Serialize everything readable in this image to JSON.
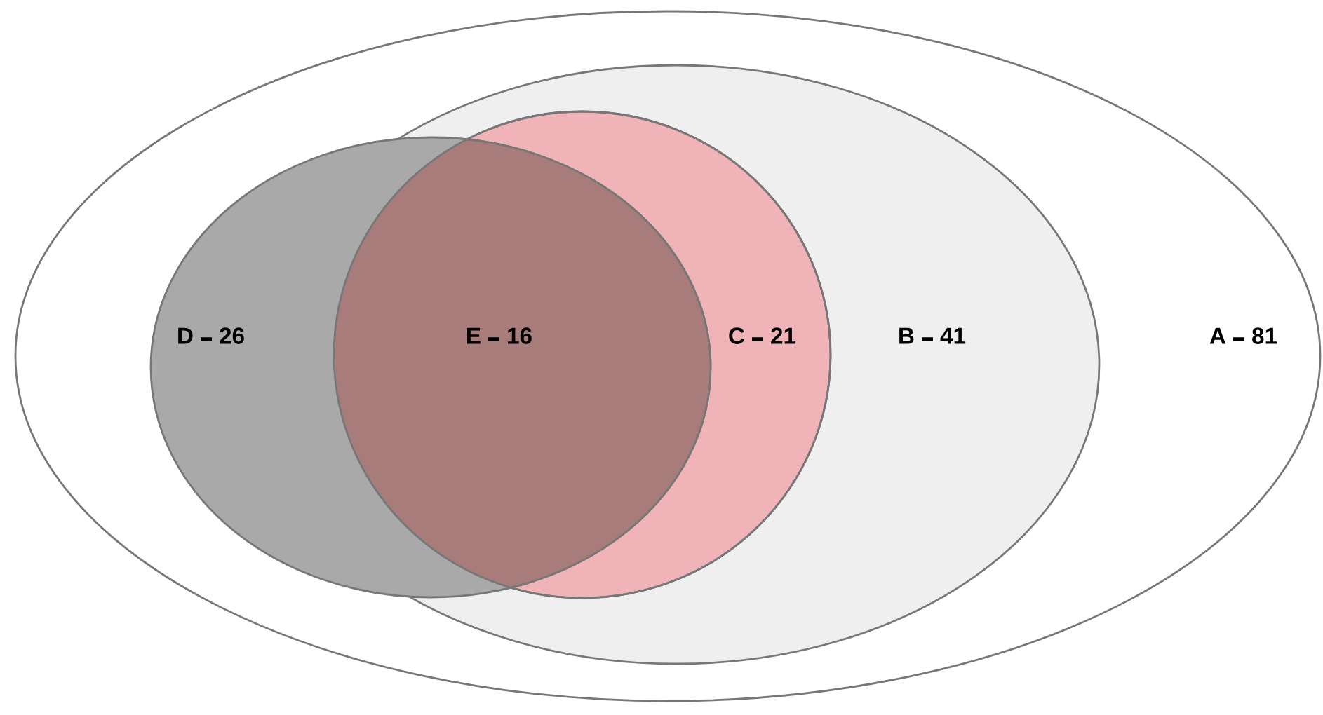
{
  "chart_data": {
    "type": "other",
    "categories": [
      "A",
      "B",
      "C",
      "D",
      "E"
    ],
    "values": [
      81,
      41,
      21,
      26,
      16
    ],
    "data_labels": true,
    "colors": [
      "#ffffff",
      "#efefef",
      "#f0b3b8",
      "#a9a9a9",
      "#a87c7b"
    ]
  }
}
